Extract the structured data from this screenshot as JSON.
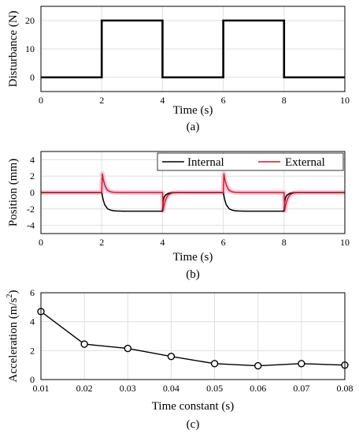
{
  "colors": {
    "internal": "#000000",
    "external": "#cc1f1f",
    "external_shade": "#f7b7d7",
    "grid": "#dedede"
  },
  "chart_data": [
    {
      "type": "line",
      "caption": "(a)",
      "xlabel": "Time (s)",
      "ylabel": "Disturbance (N)",
      "xlim": [
        0,
        10
      ],
      "ylim": [
        -5,
        25
      ],
      "xticks": [
        "0",
        "2",
        "4",
        "6",
        "8",
        "10"
      ],
      "yticks": [
        "0",
        "10",
        "20"
      ],
      "grid": true,
      "series": [
        {
          "x": [
            0,
            2,
            2,
            4,
            4,
            6,
            6,
            8,
            8,
            10
          ],
          "y": [
            0,
            0,
            20,
            20,
            0,
            0,
            20,
            20,
            0,
            0
          ]
        }
      ]
    },
    {
      "type": "line",
      "caption": "(b)",
      "xlabel": "Time (s)",
      "ylabel": "Position (mm)",
      "xlim": [
        0,
        10
      ],
      "ylim": [
        -5,
        5
      ],
      "xticks": [
        "0",
        "2",
        "4",
        "6",
        "8",
        "10"
      ],
      "yticks": [
        "-4",
        "-2",
        "0",
        "2",
        "4"
      ],
      "grid": true,
      "legend_position": "top-right",
      "series": [
        {
          "name": "Internal",
          "x": [
            0,
            2,
            2.05,
            2.1,
            2.2,
            2.3,
            2.4,
            2.5,
            2.7,
            4,
            4.02,
            4.05,
            4.1,
            4.2,
            4.3,
            4.4,
            4.6,
            6,
            6.05,
            6.1,
            6.2,
            6.3,
            6.4,
            6.5,
            6.7,
            8,
            8.02,
            8.05,
            8.1,
            8.2,
            8.3,
            8.4,
            8.6,
            10
          ],
          "y": [
            0,
            0,
            -0.9,
            -1.5,
            -2.0,
            -2.15,
            -2.22,
            -2.25,
            -2.27,
            -2.27,
            -1.1,
            -0.6,
            -0.3,
            -0.1,
            -0.03,
            0,
            0,
            0,
            -0.9,
            -1.5,
            -2.0,
            -2.15,
            -2.22,
            -2.25,
            -2.27,
            -2.27,
            -1.1,
            -0.6,
            -0.3,
            -0.1,
            -0.03,
            0,
            0,
            0
          ]
        },
        {
          "name": "External",
          "x": [
            0,
            2,
            2.02,
            2.05,
            2.1,
            2.15,
            2.2,
            2.3,
            2.4,
            2.6,
            4,
            4.02,
            4.05,
            4.1,
            4.15,
            4.2,
            4.3,
            4.4,
            4.6,
            6,
            6.02,
            6.05,
            6.1,
            6.15,
            6.2,
            6.3,
            6.4,
            6.6,
            8,
            8.02,
            8.05,
            8.1,
            8.15,
            8.2,
            8.3,
            8.4,
            8.6,
            10
          ],
          "y": [
            0,
            0,
            2.3,
            1.6,
            0.9,
            0.5,
            0.25,
            0.08,
            0.02,
            0,
            0,
            -2.2,
            -1.6,
            -0.9,
            -0.5,
            -0.25,
            -0.08,
            -0.02,
            0,
            0,
            2.3,
            1.6,
            0.9,
            0.5,
            0.25,
            0.08,
            0.02,
            0,
            0,
            -2.2,
            -1.6,
            -0.9,
            -0.5,
            -0.25,
            -0.08,
            -0.02,
            0,
            0
          ]
        }
      ]
    },
    {
      "type": "line",
      "caption": "(c)",
      "xlabel": "Time constant (s)",
      "ylabel": "Acceleration (m/s",
      "ylabel_sup": "2",
      "ylabel_end": ")",
      "xlim": [
        0.01,
        0.08
      ],
      "ylim": [
        0,
        6
      ],
      "xticks": [
        "0.01",
        "0.02",
        "0.03",
        "0.04",
        "0.05",
        "0.06",
        "0.07",
        "0.08"
      ],
      "yticks": [
        "0",
        "2",
        "4",
        "6"
      ],
      "grid": true,
      "series": [
        {
          "x": [
            0.01,
            0.02,
            0.03,
            0.04,
            0.05,
            0.06,
            0.07,
            0.08
          ],
          "y": [
            4.7,
            2.45,
            2.15,
            1.6,
            1.1,
            0.95,
            1.1,
            1.0
          ]
        }
      ]
    }
  ]
}
